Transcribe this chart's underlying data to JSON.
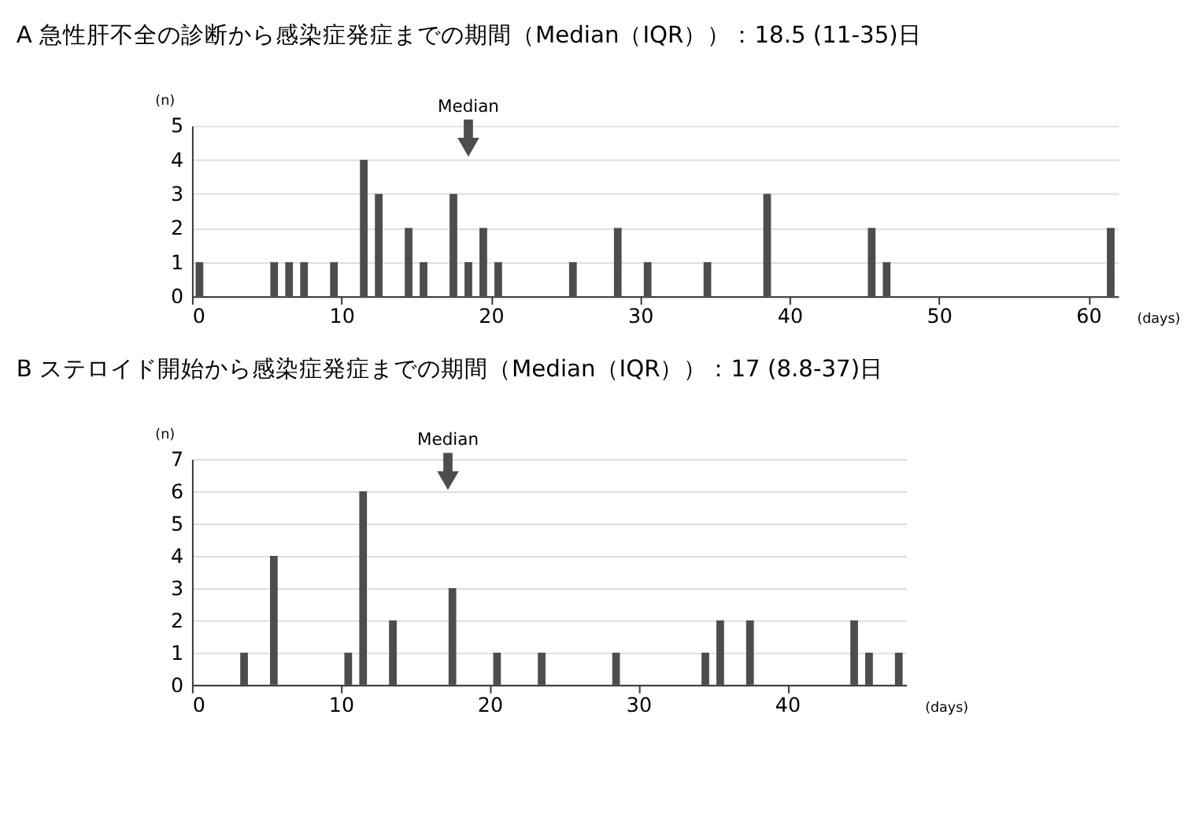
{
  "chart_data": [
    {
      "type": "bar",
      "title": "A  急性肝不全の診断から感染症発症までの期間（Median（IQR））：18.5 (11-35)日",
      "ylabel": "(n)",
      "xlabel": "(days)",
      "x": [
        0.5,
        5.5,
        6.5,
        7.5,
        9.5,
        11.5,
        12.5,
        14.5,
        15.5,
        17.5,
        18.5,
        19.5,
        20.5,
        25.5,
        28.5,
        30.5,
        34.5,
        38.5,
        45.5,
        46.5,
        61.5
      ],
      "series": [
        {
          "color": "#4d4d4d",
          "values": [
            1,
            1,
            1,
            1,
            1,
            4,
            3,
            2,
            1,
            3,
            1,
            2,
            1,
            1,
            2,
            1,
            1,
            3,
            2,
            1,
            2
          ]
        }
      ],
      "xlim": [
        0,
        62
      ],
      "xticks": [
        0,
        10,
        20,
        30,
        40,
        50,
        60
      ],
      "ylim": [
        0,
        5
      ],
      "yticks": [
        0,
        1,
        2,
        3,
        4,
        5
      ],
      "grid": "y",
      "ref_lines": [
        {
          "axis": "x",
          "value": 18.5,
          "label": "Median"
        }
      ]
    },
    {
      "type": "bar",
      "title": "B  ステロイド開始から感染症発症までの期間（Median（IQR））：17 (8.8-37)日",
      "ylabel": "(n)",
      "xlabel": "(days)",
      "x": [
        3.5,
        5.5,
        10.5,
        11.5,
        13.5,
        17.5,
        20.5,
        23.5,
        28.5,
        34.5,
        35.5,
        37.5,
        44.5,
        45.5,
        47.5
      ],
      "series": [
        {
          "color": "#4d4d4d",
          "values": [
            1,
            4,
            1,
            6,
            2,
            3,
            1,
            1,
            1,
            1,
            2,
            2,
            2,
            1,
            1
          ]
        }
      ],
      "xlim": [
        0,
        48
      ],
      "xticks": [
        0,
        10,
        20,
        30,
        40
      ],
      "ylim": [
        0,
        7
      ],
      "yticks": [
        0,
        1,
        2,
        3,
        4,
        5,
        6,
        7
      ],
      "grid": "y",
      "ref_lines": [
        {
          "axis": "x",
          "value": 17.2,
          "label": "Median"
        }
      ]
    }
  ]
}
